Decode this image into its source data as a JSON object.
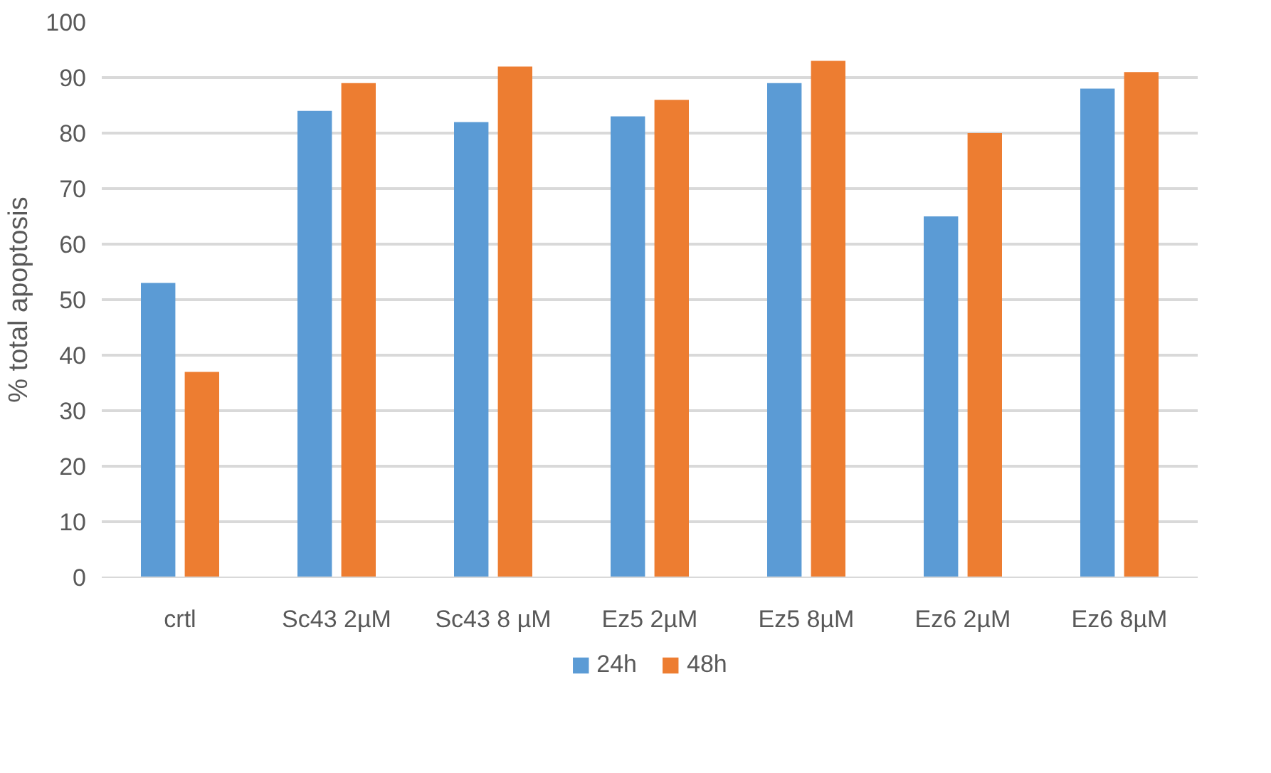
{
  "chart_data": {
    "type": "bar",
    "ylabel": "% total apoptosis",
    "categories": [
      "crtl",
      "Sc43 2µM",
      "Sc43 8 µM",
      "Ez5 2µM",
      "Ez5 8µM",
      "Ez6 2µM",
      "Ez6 8µM"
    ],
    "series": [
      {
        "name": "24h",
        "color": "#5b9bd5",
        "values": [
          53,
          84,
          82,
          83,
          89,
          65,
          88
        ]
      },
      {
        "name": "48h",
        "color": "#ed7d31",
        "values": [
          37,
          89,
          92,
          86,
          93,
          80,
          91
        ]
      }
    ],
    "ylim": [
      0,
      100
    ],
    "yticks": [
      0,
      10,
      20,
      30,
      40,
      50,
      60,
      70,
      80,
      90,
      100
    ],
    "grid": "y",
    "legend": "bottom"
  }
}
